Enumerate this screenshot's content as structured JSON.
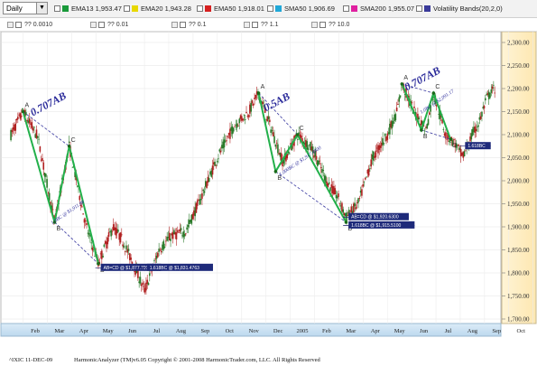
{
  "toolbar": {
    "period_value": "Daily",
    "period_arrow": "▼",
    "indicators": [
      {
        "label": "EMA13 1,953.47",
        "color": "#1a9a3a",
        "checked": true
      },
      {
        "label": "EMA20 1,943.28",
        "color": "#e8d800",
        "checked": false
      },
      {
        "label": "EMA50 1,918.01",
        "color": "#d62020",
        "checked": false
      },
      {
        "label": "SMA50 1,906.69",
        "color": "#20a8d8",
        "checked": false
      },
      {
        "label": "SMA200 1,955.07",
        "color": "#e020a0",
        "checked": false
      },
      {
        "label": "Volatility Bands(20,2,0)",
        "color": "#3a3a9a",
        "checked": false
      }
    ],
    "fib_items": [
      "?? 0.0010",
      "?? 0.01",
      "?? 0.1",
      "?? 1.1",
      "?? 10.0"
    ]
  },
  "chart_data": {
    "type": "candlestick",
    "y_range": [
      1700,
      2300
    ],
    "y_ticks": [
      "1,700.00",
      "1,750.00",
      "1,800.00",
      "1,850.00",
      "1,900.00",
      "1,950.00",
      "2,000.00",
      "2,050.00",
      "2,100.00",
      "2,150.00",
      "2,200.00",
      "2,250.00",
      "2,300.00"
    ],
    "x_ticks": [
      "Feb",
      "Mar",
      "Apr",
      "May",
      "Jun",
      "Jul",
      "Aug",
      "Sep",
      "Oct",
      "Nov",
      "Dec",
      "2005",
      "Feb",
      "Mar",
      "Apr",
      "May",
      "Jun",
      "Jul",
      "Aug",
      "Sep",
      "Oct",
      "N"
    ],
    "price_path": [
      {
        "m": 0,
        "v": 2100
      },
      {
        "m": 0.5,
        "v": 2150
      },
      {
        "m": 1.1,
        "v": 2095
      },
      {
        "m": 1.8,
        "v": 1910
      },
      {
        "m": 2.4,
        "v": 2075
      },
      {
        "m": 3.1,
        "v": 1900
      },
      {
        "m": 3.6,
        "v": 1820
      },
      {
        "m": 4.2,
        "v": 1900
      },
      {
        "m": 4.6,
        "v": 1870
      },
      {
        "m": 5.2,
        "v": 1800
      },
      {
        "m": 5.5,
        "v": 1760
      },
      {
        "m": 6.1,
        "v": 1850
      },
      {
        "m": 6.6,
        "v": 1880
      },
      {
        "m": 7.2,
        "v": 1890
      },
      {
        "m": 7.8,
        "v": 1960
      },
      {
        "m": 8.5,
        "v": 2050
      },
      {
        "m": 9.2,
        "v": 2120
      },
      {
        "m": 9.8,
        "v": 2150
      },
      {
        "m": 10.2,
        "v": 2190
      },
      {
        "m": 10.6,
        "v": 2130
      },
      {
        "m": 11.2,
        "v": 2040
      },
      {
        "m": 11.8,
        "v": 2100
      },
      {
        "m": 12.4,
        "v": 2070
      },
      {
        "m": 13,
        "v": 2000
      },
      {
        "m": 13.5,
        "v": 1960
      },
      {
        "m": 13.8,
        "v": 1920
      },
      {
        "m": 14.3,
        "v": 1950
      },
      {
        "m": 14.9,
        "v": 2050
      },
      {
        "m": 15.5,
        "v": 2100
      },
      {
        "m": 15.9,
        "v": 2150
      },
      {
        "m": 16.1,
        "v": 2210
      },
      {
        "m": 16.6,
        "v": 2150
      },
      {
        "m": 17.1,
        "v": 2110
      },
      {
        "m": 17.4,
        "v": 2190
      },
      {
        "m": 17.9,
        "v": 2100
      },
      {
        "m": 18.3,
        "v": 2080
      },
      {
        "m": 18.6,
        "v": 2050
      },
      {
        "m": 19,
        "v": 2100
      },
      {
        "m": 19.3,
        "v": 2130
      },
      {
        "m": 19.6,
        "v": 2180
      },
      {
        "m": 19.9,
        "v": 2200
      }
    ],
    "patterns": [
      {
        "points": [
          {
            "m": 0.5,
            "v": 2150,
            "label": "A"
          },
          {
            "m": 1.8,
            "v": 1910,
            "label": "B"
          },
          {
            "m": 2.4,
            "v": 2075,
            "label": "C"
          },
          {
            "m": 3.6,
            "v": 1820,
            "label": "D"
          }
        ],
        "ratio_label": "0.707AB",
        "ratio_at": {
          "m": 0.9,
          "v": 2140
        },
        "proj_label": "1.0BC @ $1,911.88",
        "proj_at": {
          "m": 1.7,
          "v": 1905
        },
        "boxes": [
          {
            "m": 3.7,
            "v": 1818,
            "text": "AB=CD @ $1,877.7000"
          },
          {
            "m": 5.6,
            "v": 1818,
            "text": "1.618BC @ $1,831.4763"
          }
        ]
      },
      {
        "points": [
          {
            "m": 10.2,
            "v": 2190,
            "label": "A"
          },
          {
            "m": 10.9,
            "v": 2020,
            "label": "B"
          },
          {
            "m": 11.8,
            "v": 2100,
            "label": "C"
          },
          {
            "m": 13.8,
            "v": 1910,
            "label": "D"
          }
        ],
        "ratio_label": "0.5AB",
        "ratio_at": {
          "m": 10.5,
          "v": 2150
        },
        "proj_label": "1.000BC @ $1,917.4800",
        "proj_at": {
          "m": 11.1,
          "v": 2010
        },
        "boxes": [
          {
            "m": 13.9,
            "v": 1928,
            "text": "AB=CD @ $1,920.6300"
          },
          {
            "m": 13.9,
            "v": 1910,
            "text": "1.618BC @ $1,915.5100"
          }
        ]
      },
      {
        "points": [
          {
            "m": 16.1,
            "v": 2210,
            "label": "A"
          },
          {
            "m": 16.9,
            "v": 2110,
            "label": "B"
          },
          {
            "m": 17.4,
            "v": 2190,
            "label": "C"
          },
          {
            "m": 18.1,
            "v": 2090,
            "label": "D"
          }
        ],
        "ratio_label": "0.707AB",
        "ratio_at": {
          "m": 16.3,
          "v": 2195
        },
        "proj_label": "1.0BC @ $2,091.17",
        "proj_at": {
          "m": 16.9,
          "v": 2145
        },
        "boxes": [
          {
            "m": 18.7,
            "v": 2082,
            "text": "1.618BC"
          }
        ]
      }
    ]
  },
  "footer": {
    "symbol": "^IXIC 11-DEC-09",
    "copyright": "HarmonicAnalyzer (TM)v6.05 Copyright © 2001-2008 HarmonicTrader.com, LLC. All Rights Reserved"
  }
}
